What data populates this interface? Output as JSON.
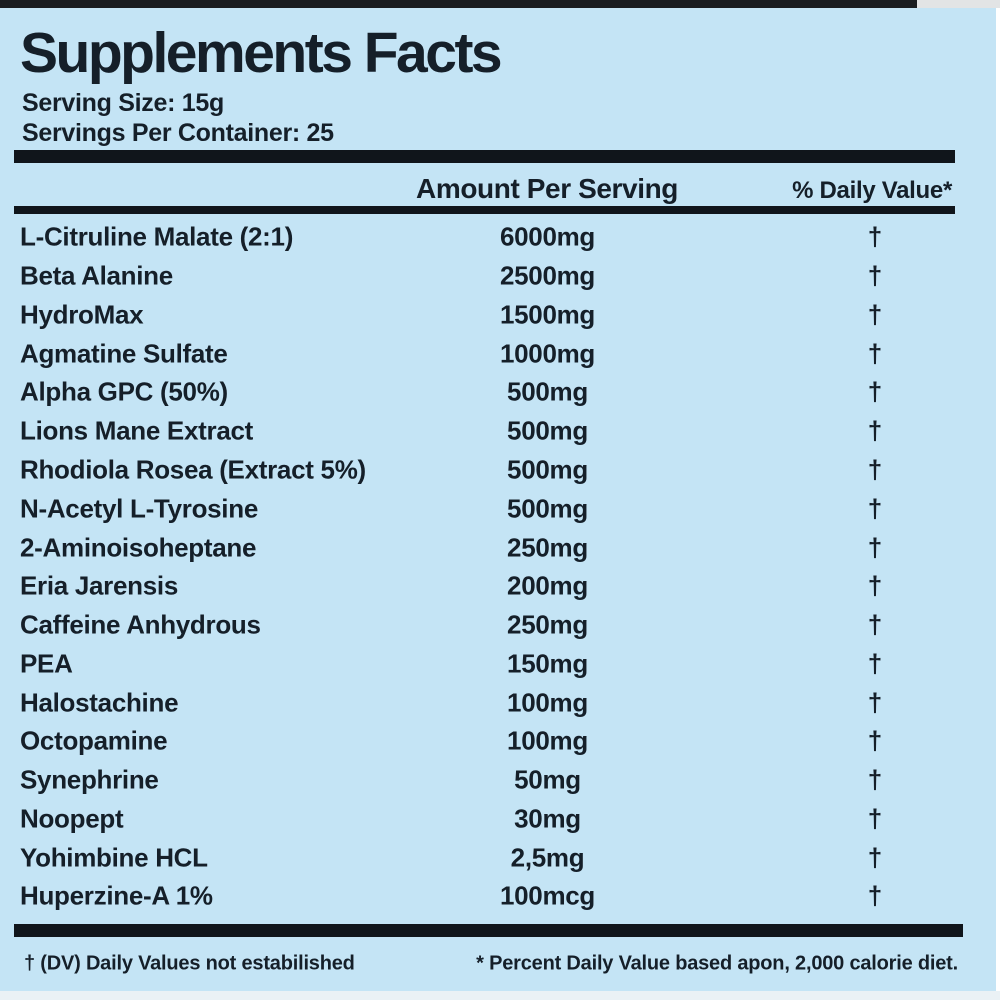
{
  "label": {
    "title": "Supplements Facts",
    "serving_size": "Serving Size: 15g",
    "servings_per_container": "Servings Per Container: 25"
  },
  "table": {
    "columns": {
      "amount": "Amount Per Serving",
      "daily_value": "% Daily Value*"
    },
    "rows": [
      {
        "name": "L-Citruline Malate (2:1)",
        "amount": "6000mg",
        "daily_value": "†"
      },
      {
        "name": "Beta Alanine",
        "amount": "2500mg",
        "daily_value": "†"
      },
      {
        "name": "HydroMax",
        "amount": "1500mg",
        "daily_value": "†"
      },
      {
        "name": "Agmatine Sulfate",
        "amount": "1000mg",
        "daily_value": "†"
      },
      {
        "name": "Alpha GPC (50%)",
        "amount": "500mg",
        "daily_value": "†"
      },
      {
        "name": "Lions Mane Extract",
        "amount": "500mg",
        "daily_value": "†"
      },
      {
        "name": "Rhodiola Rosea (Extract 5%)",
        "amount": "500mg",
        "daily_value": "†"
      },
      {
        "name": "N-Acetyl L-Tyrosine",
        "amount": "500mg",
        "daily_value": "†"
      },
      {
        "name": "2-Aminoisoheptane",
        "amount": "250mg",
        "daily_value": "†"
      },
      {
        "name": "Eria Jarensis",
        "amount": "200mg",
        "daily_value": "†"
      },
      {
        "name": "Caffeine Anhydrous",
        "amount": "250mg",
        "daily_value": "†"
      },
      {
        "name": "PEA",
        "amount": "150mg",
        "daily_value": "†"
      },
      {
        "name": "Halostachine",
        "amount": "100mg",
        "daily_value": "†"
      },
      {
        "name": "Octopamine",
        "amount": "100mg",
        "daily_value": "†"
      },
      {
        "name": "Synephrine",
        "amount": "50mg",
        "daily_value": "†"
      },
      {
        "name": "Noopept",
        "amount": "30mg",
        "daily_value": "†"
      },
      {
        "name": "Yohimbine HCL",
        "amount": "2,5mg",
        "daily_value": "†"
      },
      {
        "name": "Huperzine-A 1%",
        "amount": "100mcg",
        "daily_value": "†"
      }
    ]
  },
  "footer": {
    "dv_note": "† (DV) Daily Values not estabilished",
    "percent_note": "* Percent Daily Value based apon, 2,000 calorie diet."
  },
  "colors": {
    "background": "#c4e4f5",
    "text": "#151f29",
    "bar": "#10151b",
    "top_border": "#1a1d20"
  }
}
